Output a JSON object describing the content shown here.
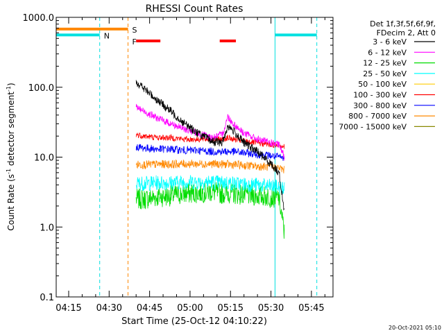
{
  "chart_data": {
    "type": "line",
    "title": "RHESSI Count Rates",
    "xlabel": "Start Time (25-Oct-12 04:10:22)",
    "ylabel_main": "Count Rate (s",
    "ylabel_sup": "-1",
    "ylabel_tail": " detector segment",
    "ylabel_end": ")",
    "y_scale": "log",
    "ylim": [
      0.1,
      1000.0
    ],
    "y_ticks": [
      "0.1",
      "1.0",
      "10.0",
      "100.0",
      "1000.0"
    ],
    "x_ticks": [
      "04:15",
      "04:30",
      "04:45",
      "05:00",
      "05:15",
      "05:30",
      "05:45"
    ],
    "x_tick_minutes": [
      15,
      30,
      45,
      60,
      75,
      90,
      105
    ],
    "xlim_minutes": [
      10.37,
      113.0
    ],
    "legend_header": [
      "Det 1f,3f,5f,6f,9f,",
      "FDecim 2, Att 0"
    ],
    "series": [
      {
        "name": "3 - 6 keV",
        "color": "#000000"
      },
      {
        "name": "6 - 12 keV",
        "color": "#ff00ff"
      },
      {
        "name": "12 - 25 keV",
        "color": "#00dd00"
      },
      {
        "name": "25 - 50 keV",
        "color": "#00ffff"
      },
      {
        "name": "50 - 100 keV",
        "color": "#ffcc00"
      },
      {
        "name": "100 - 300 keV",
        "color": "#ff0000"
      },
      {
        "name": "300 - 800 keV",
        "color": "#0000ff"
      },
      {
        "name": "800 - 7000 keV",
        "color": "#ff8800"
      },
      {
        "name": "7000 - 15000 keV",
        "color": "#888800"
      }
    ],
    "series_envelope": {
      "x_minutes": [
        40,
        43,
        48,
        53,
        58,
        63,
        68,
        72,
        74,
        76,
        80,
        85,
        90,
        93,
        95
      ],
      "3 - 6 keV": [
        120,
        95,
        65,
        45,
        30,
        22,
        17,
        16,
        28,
        24,
        16,
        12,
        8,
        6,
        1.6
      ],
      "6 - 12 keV": [
        52,
        45,
        36,
        30,
        25,
        22,
        19,
        21,
        38,
        30,
        22,
        18,
        16,
        15,
        10
      ],
      "12 - 25 keV": [
        2.5,
        2.5,
        2.7,
        2.8,
        3,
        3.1,
        3.2,
        3,
        3.1,
        3,
        2.9,
        2.8,
        2.7,
        2.6,
        0.8
      ],
      "25 - 50 keV": [
        4.2,
        4.2,
        4.3,
        4.3,
        4.4,
        4.4,
        4.4,
        4.3,
        4.3,
        4.2,
        4.1,
        4,
        3.8,
        3.7,
        3.6
      ],
      "50 - 100 keV": [
        9,
        9,
        9,
        9,
        9,
        9,
        9,
        9,
        9,
        9,
        8.8,
        8.6,
        8.5,
        8.4,
        8.3
      ],
      "100 - 300 keV": [
        21,
        20,
        19,
        19,
        18,
        18,
        18,
        18,
        19,
        18,
        17,
        16,
        15,
        15,
        14
      ],
      "300 - 800 keV": [
        14,
        13.5,
        13,
        13,
        12.5,
        12.5,
        12,
        12,
        12,
        12,
        11.5,
        11,
        10.5,
        10,
        9.5
      ],
      "800 - 7000 keV": [
        7.8,
        7.8,
        7.9,
        7.9,
        8,
        8,
        8,
        7.9,
        7.9,
        7.8,
        7.6,
        7.4,
        7.2,
        7,
        6.5
      ]
    },
    "flags": [
      {
        "name": "N",
        "color": "#00e0e0",
        "y": 560,
        "segments": [
          [
            10.37,
            26.5
          ],
          [
            91.5,
            107
          ]
        ]
      },
      {
        "name": "S",
        "color": "#ff8800",
        "y": 680,
        "segments": [
          [
            10.37,
            37
          ]
        ]
      },
      {
        "name": "F",
        "color": "#ff0000",
        "y": 460,
        "segments": [
          [
            40,
            49
          ],
          [
            71,
            77
          ]
        ]
      }
    ],
    "vlines": [
      {
        "minute": 26.5,
        "color": "#00e0e0",
        "dashed": true
      },
      {
        "minute": 37,
        "color": "#ff8800",
        "dashed": true
      },
      {
        "minute": 91.5,
        "color": "#00e0e0",
        "dashed": false
      },
      {
        "minute": 107,
        "color": "#00e0e0",
        "dashed": true
      }
    ],
    "grid": false,
    "legend_position": "right"
  },
  "footer_timestamp": "20-Oct-2021 05:10"
}
